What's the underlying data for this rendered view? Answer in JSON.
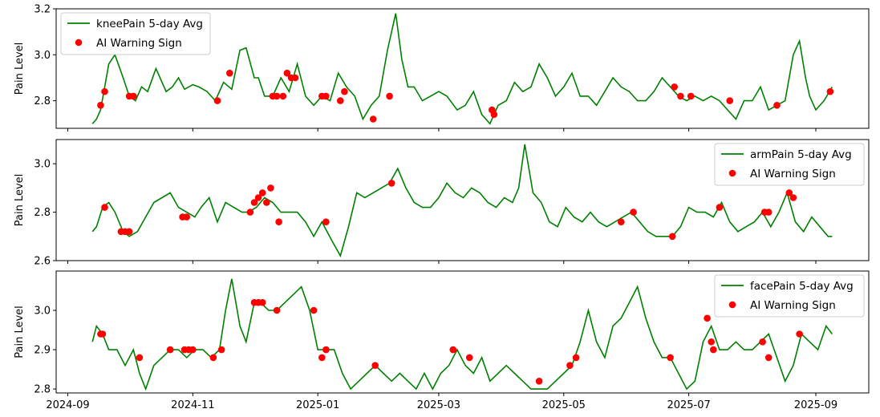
{
  "chart_data": [
    {
      "type": "line",
      "ylabel": "Pain Level",
      "ylim": [
        2.68,
        3.2
      ],
      "yticks": [
        "2.8",
        "3.0",
        "3.2"
      ],
      "legend_position": "upper-left",
      "series": [
        {
          "name": "kneePain 5-day Avg",
          "color": "#008000",
          "x": [
            "2024-09-13",
            "2024-09-15",
            "2024-09-17",
            "2024-09-19",
            "2024-09-21",
            "2024-09-24",
            "2024-09-28",
            "2024-10-01",
            "2024-10-04",
            "2024-10-07",
            "2024-10-10",
            "2024-10-14",
            "2024-10-16",
            "2024-10-19",
            "2024-10-22",
            "2024-10-25",
            "2024-10-28",
            "2024-11-01",
            "2024-11-04",
            "2024-11-08",
            "2024-11-12",
            "2024-11-16",
            "2024-11-20",
            "2024-11-24",
            "2024-11-27",
            "2024-12-01",
            "2024-12-03",
            "2024-12-06",
            "2024-12-10",
            "2024-12-14",
            "2024-12-18",
            "2024-12-22",
            "2024-12-26",
            "2024-12-30",
            "2025-01-03",
            "2025-01-07",
            "2025-01-11",
            "2025-01-15",
            "2025-01-19",
            "2025-01-23",
            "2025-01-27",
            "2025-01-31",
            "2025-02-04",
            "2025-02-08",
            "2025-02-11",
            "2025-02-14",
            "2025-02-17",
            "2025-02-21",
            "2025-02-25",
            "2025-03-01",
            "2025-03-05",
            "2025-03-10",
            "2025-03-14",
            "2025-03-18",
            "2025-03-22",
            "2025-03-26",
            "2025-03-30",
            "2025-04-03",
            "2025-04-07",
            "2025-04-11",
            "2025-04-15",
            "2025-04-19",
            "2025-04-23",
            "2025-04-27",
            "2025-05-01",
            "2025-05-05",
            "2025-05-09",
            "2025-05-13",
            "2025-05-17",
            "2025-05-21",
            "2025-05-25",
            "2025-05-29",
            "2025-06-02",
            "2025-06-06",
            "2025-06-10",
            "2025-06-14",
            "2025-06-18",
            "2025-06-22",
            "2025-06-26",
            "2025-06-30",
            "2025-07-04",
            "2025-07-08",
            "2025-07-12",
            "2025-07-16",
            "2025-07-20",
            "2025-07-24",
            "2025-07-28",
            "2025-08-01",
            "2025-08-05",
            "2025-08-09",
            "2025-08-13",
            "2025-08-17",
            "2025-08-21",
            "2025-08-24",
            "2025-08-27",
            "2025-08-29",
            "2025-09-01",
            "2025-09-05",
            "2025-09-09"
          ],
          "values": [
            2.7,
            2.72,
            2.76,
            2.86,
            2.96,
            3.0,
            2.9,
            2.82,
            2.8,
            2.86,
            2.84,
            2.94,
            2.9,
            2.84,
            2.86,
            2.9,
            2.85,
            2.87,
            2.86,
            2.84,
            2.8,
            2.88,
            2.85,
            3.02,
            3.03,
            2.9,
            2.9,
            2.82,
            2.82,
            2.9,
            2.84,
            2.96,
            2.82,
            2.78,
            2.82,
            2.8,
            2.92,
            2.86,
            2.82,
            2.72,
            2.78,
            2.82,
            3.02,
            3.18,
            2.98,
            2.86,
            2.86,
            2.8,
            2.82,
            2.84,
            2.82,
            2.76,
            2.78,
            2.84,
            2.74,
            2.7,
            2.78,
            2.8,
            2.88,
            2.84,
            2.86,
            2.96,
            2.9,
            2.82,
            2.86,
            2.92,
            2.82,
            2.82,
            2.78,
            2.84,
            2.9,
            2.86,
            2.84,
            2.8,
            2.8,
            2.84,
            2.9,
            2.86,
            2.82,
            2.8,
            2.82,
            2.8,
            2.82,
            2.8,
            2.76,
            2.72,
            2.8,
            2.8,
            2.86,
            2.76,
            2.78,
            2.8,
            3.0,
            3.06,
            2.9,
            2.82,
            2.76,
            2.8,
            2.86
          ]
        },
        {
          "name": "AI Warning Sign",
          "color": "#ff0000",
          "kind": "scatter",
          "x": [
            "2024-09-17",
            "2024-09-19",
            "2024-10-01",
            "2024-10-03",
            "2024-11-13",
            "2024-11-19",
            "2024-12-10",
            "2024-12-12",
            "2024-12-15",
            "2024-12-17",
            "2024-12-19",
            "2024-12-21",
            "2025-01-03",
            "2025-01-05",
            "2025-01-12",
            "2025-01-14",
            "2025-01-28",
            "2025-02-05",
            "2025-03-27",
            "2025-03-28",
            "2025-06-24",
            "2025-06-27",
            "2025-07-02",
            "2025-07-21",
            "2025-08-13",
            "2025-09-08"
          ],
          "values": [
            2.78,
            2.84,
            2.82,
            2.82,
            2.8,
            2.92,
            2.82,
            2.82,
            2.82,
            2.92,
            2.9,
            2.9,
            2.82,
            2.82,
            2.8,
            2.84,
            2.72,
            2.82,
            2.76,
            2.74,
            2.86,
            2.82,
            2.82,
            2.8,
            2.78,
            2.84
          ]
        }
      ]
    },
    {
      "type": "line",
      "ylabel": "Pain Level",
      "ylim": [
        2.6,
        3.1
      ],
      "yticks": [
        "2.6",
        "2.8",
        "3.0"
      ],
      "legend_position": "upper-right",
      "series": [
        {
          "name": "armPain 5-day Avg",
          "color": "#008000",
          "x": [
            "2024-09-13",
            "2024-09-15",
            "2024-09-18",
            "2024-09-21",
            "2024-09-24",
            "2024-09-28",
            "2024-10-01",
            "2024-10-05",
            "2024-10-09",
            "2024-10-13",
            "2024-10-17",
            "2024-10-21",
            "2024-10-25",
            "2024-10-29",
            "2024-11-02",
            "2024-11-05",
            "2024-11-09",
            "2024-11-13",
            "2024-11-17",
            "2024-11-21",
            "2024-11-25",
            "2024-11-28",
            "2024-12-02",
            "2024-12-06",
            "2024-12-10",
            "2024-12-14",
            "2024-12-18",
            "2024-12-22",
            "2024-12-26",
            "2024-12-30",
            "2025-01-03",
            "2025-01-08",
            "2025-01-12",
            "2025-01-16",
            "2025-01-20",
            "2025-01-24",
            "2025-01-28",
            "2025-02-01",
            "2025-02-05",
            "2025-02-09",
            "2025-02-13",
            "2025-02-17",
            "2025-02-21",
            "2025-02-25",
            "2025-03-01",
            "2025-03-05",
            "2025-03-09",
            "2025-03-13",
            "2025-03-17",
            "2025-03-21",
            "2025-03-25",
            "2025-03-29",
            "2025-04-02",
            "2025-04-06",
            "2025-04-09",
            "2025-04-12",
            "2025-04-16",
            "2025-04-20",
            "2025-04-24",
            "2025-04-28",
            "2025-05-02",
            "2025-05-06",
            "2025-05-10",
            "2025-05-14",
            "2025-05-18",
            "2025-05-22",
            "2025-05-26",
            "2025-05-30",
            "2025-06-03",
            "2025-06-07",
            "2025-06-11",
            "2025-06-15",
            "2025-06-19",
            "2025-06-23",
            "2025-06-27",
            "2025-07-01",
            "2025-07-05",
            "2025-07-09",
            "2025-07-13",
            "2025-07-17",
            "2025-07-21",
            "2025-07-25",
            "2025-07-29",
            "2025-08-02",
            "2025-08-06",
            "2025-08-10",
            "2025-08-14",
            "2025-08-18",
            "2025-08-22",
            "2025-08-26",
            "2025-08-30",
            "2025-09-03",
            "2025-09-07",
            "2025-09-09"
          ],
          "values": [
            2.72,
            2.74,
            2.82,
            2.84,
            2.8,
            2.72,
            2.7,
            2.72,
            2.78,
            2.84,
            2.86,
            2.88,
            2.82,
            2.8,
            2.78,
            2.82,
            2.86,
            2.76,
            2.84,
            2.82,
            2.8,
            2.8,
            2.82,
            2.86,
            2.84,
            2.8,
            2.8,
            2.8,
            2.76,
            2.7,
            2.76,
            2.68,
            2.62,
            2.74,
            2.88,
            2.86,
            2.88,
            2.9,
            2.92,
            2.98,
            2.9,
            2.84,
            2.82,
            2.82,
            2.86,
            2.92,
            2.88,
            2.86,
            2.9,
            2.88,
            2.84,
            2.82,
            2.86,
            2.84,
            2.9,
            3.08,
            2.88,
            2.84,
            2.76,
            2.74,
            2.82,
            2.78,
            2.76,
            2.8,
            2.76,
            2.74,
            2.76,
            2.78,
            2.8,
            2.76,
            2.72,
            2.7,
            2.7,
            2.7,
            2.74,
            2.82,
            2.8,
            2.8,
            2.78,
            2.84,
            2.76,
            2.72,
            2.74,
            2.76,
            2.8,
            2.74,
            2.8,
            2.88,
            2.76,
            2.72,
            2.78,
            2.74,
            2.7,
            2.7
          ]
        },
        {
          "name": "AI Warning Sign",
          "color": "#ff0000",
          "kind": "scatter",
          "x": [
            "2024-09-19",
            "2024-09-27",
            "2024-09-29",
            "2024-10-01",
            "2024-10-27",
            "2024-10-29",
            "2024-11-29",
            "2024-12-01",
            "2024-12-03",
            "2024-12-05",
            "2024-12-07",
            "2024-12-09",
            "2024-12-13",
            "2025-01-05",
            "2025-02-06",
            "2025-05-29",
            "2025-06-04",
            "2025-06-23",
            "2025-07-16",
            "2025-08-07",
            "2025-08-09",
            "2025-08-19",
            "2025-08-21"
          ],
          "values": [
            2.82,
            2.72,
            2.72,
            2.72,
            2.78,
            2.78,
            2.8,
            2.84,
            2.86,
            2.88,
            2.84,
            2.9,
            2.76,
            2.76,
            2.92,
            2.76,
            2.8,
            2.7,
            2.82,
            2.8,
            2.8,
            2.88,
            2.86
          ]
        }
      ]
    },
    {
      "type": "line",
      "ylabel": "Pain Level",
      "ylim": [
        2.79,
        3.1
      ],
      "yticks": [
        "2.8",
        "2.9",
        "3.0"
      ],
      "xticks": [
        "2024-09",
        "2024-11",
        "2025-01",
        "2025-03",
        "2025-05",
        "2025-07",
        "2025-09"
      ],
      "legend_position": "upper-right",
      "series": [
        {
          "name": "facePain 5-day Avg",
          "color": "#008000",
          "x": [
            "2024-09-13",
            "2024-09-15",
            "2024-09-18",
            "2024-09-21",
            "2024-09-25",
            "2024-09-29",
            "2024-10-03",
            "2024-10-06",
            "2024-10-09",
            "2024-10-13",
            "2024-10-17",
            "2024-10-21",
            "2024-10-25",
            "2024-10-29",
            "2024-11-02",
            "2024-11-06",
            "2024-11-10",
            "2024-11-14",
            "2024-11-17",
            "2024-11-20",
            "2024-11-24",
            "2024-11-27",
            "2024-12-01",
            "2024-12-04",
            "2024-12-08",
            "2024-12-12",
            "2024-12-16",
            "2024-12-20",
            "2024-12-24",
            "2024-12-28",
            "2025-01-01",
            "2025-01-05",
            "2025-01-09",
            "2025-01-13",
            "2025-01-17",
            "2025-01-21",
            "2025-01-25",
            "2025-01-29",
            "2025-02-02",
            "2025-02-06",
            "2025-02-10",
            "2025-02-14",
            "2025-02-18",
            "2025-02-22",
            "2025-02-26",
            "2025-03-02",
            "2025-03-06",
            "2025-03-10",
            "2025-03-14",
            "2025-03-18",
            "2025-03-22",
            "2025-03-26",
            "2025-03-30",
            "2025-04-03",
            "2025-04-07",
            "2025-04-11",
            "2025-04-15",
            "2025-04-19",
            "2025-04-23",
            "2025-04-27",
            "2025-05-01",
            "2025-05-05",
            "2025-05-09",
            "2025-05-13",
            "2025-05-17",
            "2025-05-21",
            "2025-05-25",
            "2025-05-29",
            "2025-06-02",
            "2025-06-06",
            "2025-06-10",
            "2025-06-14",
            "2025-06-18",
            "2025-06-22",
            "2025-06-26",
            "2025-06-30",
            "2025-07-04",
            "2025-07-08",
            "2025-07-12",
            "2025-07-16",
            "2025-07-20",
            "2025-07-24",
            "2025-07-28",
            "2025-08-01",
            "2025-08-05",
            "2025-08-09",
            "2025-08-13",
            "2025-08-17",
            "2025-08-21",
            "2025-08-25",
            "2025-08-29",
            "2025-09-02",
            "2025-09-06",
            "2025-09-09"
          ],
          "values": [
            2.92,
            2.96,
            2.94,
            2.9,
            2.9,
            2.86,
            2.9,
            2.84,
            2.8,
            2.86,
            2.88,
            2.9,
            2.9,
            2.88,
            2.9,
            2.9,
            2.88,
            2.9,
            3.0,
            3.08,
            2.96,
            2.92,
            3.02,
            3.02,
            3.0,
            3.0,
            3.02,
            3.04,
            3.06,
            3.0,
            2.9,
            2.9,
            2.9,
            2.84,
            2.8,
            2.82,
            2.84,
            2.86,
            2.84,
            2.82,
            2.84,
            2.82,
            2.8,
            2.84,
            2.8,
            2.84,
            2.86,
            2.9,
            2.86,
            2.84,
            2.88,
            2.82,
            2.84,
            2.86,
            2.84,
            2.82,
            2.8,
            2.8,
            2.8,
            2.82,
            2.84,
            2.86,
            2.92,
            3.0,
            2.92,
            2.88,
            2.96,
            2.98,
            3.02,
            3.06,
            2.98,
            2.92,
            2.88,
            2.88,
            2.84,
            2.8,
            2.82,
            2.92,
            2.96,
            2.9,
            2.9,
            2.92,
            2.9,
            2.9,
            2.92,
            2.94,
            2.88,
            2.82,
            2.86,
            2.94,
            2.92,
            2.9,
            2.96,
            2.94
          ]
        },
        {
          "name": "AI Warning Sign",
          "color": "#ff0000",
          "kind": "scatter",
          "x": [
            "2024-09-17",
            "2024-09-18",
            "2024-10-06",
            "2024-10-21",
            "2024-10-28",
            "2024-10-30",
            "2024-11-01",
            "2024-11-11",
            "2024-11-15",
            "2024-12-01",
            "2024-12-03",
            "2024-12-05",
            "2024-12-12",
            "2024-12-30",
            "2025-01-03",
            "2025-01-05",
            "2025-01-29",
            "2025-03-08",
            "2025-03-16",
            "2025-04-19",
            "2025-05-04",
            "2025-05-07",
            "2025-06-22",
            "2025-07-10",
            "2025-07-12",
            "2025-07-13",
            "2025-08-06",
            "2025-08-09",
            "2025-08-24"
          ],
          "values": [
            2.94,
            2.94,
            2.88,
            2.9,
            2.9,
            2.9,
            2.9,
            2.88,
            2.9,
            3.02,
            3.02,
            3.02,
            3.0,
            3.0,
            2.88,
            2.9,
            2.86,
            2.9,
            2.88,
            2.82,
            2.86,
            2.88,
            2.88,
            2.98,
            2.92,
            2.9,
            2.92,
            2.88,
            2.94
          ]
        }
      ]
    }
  ]
}
